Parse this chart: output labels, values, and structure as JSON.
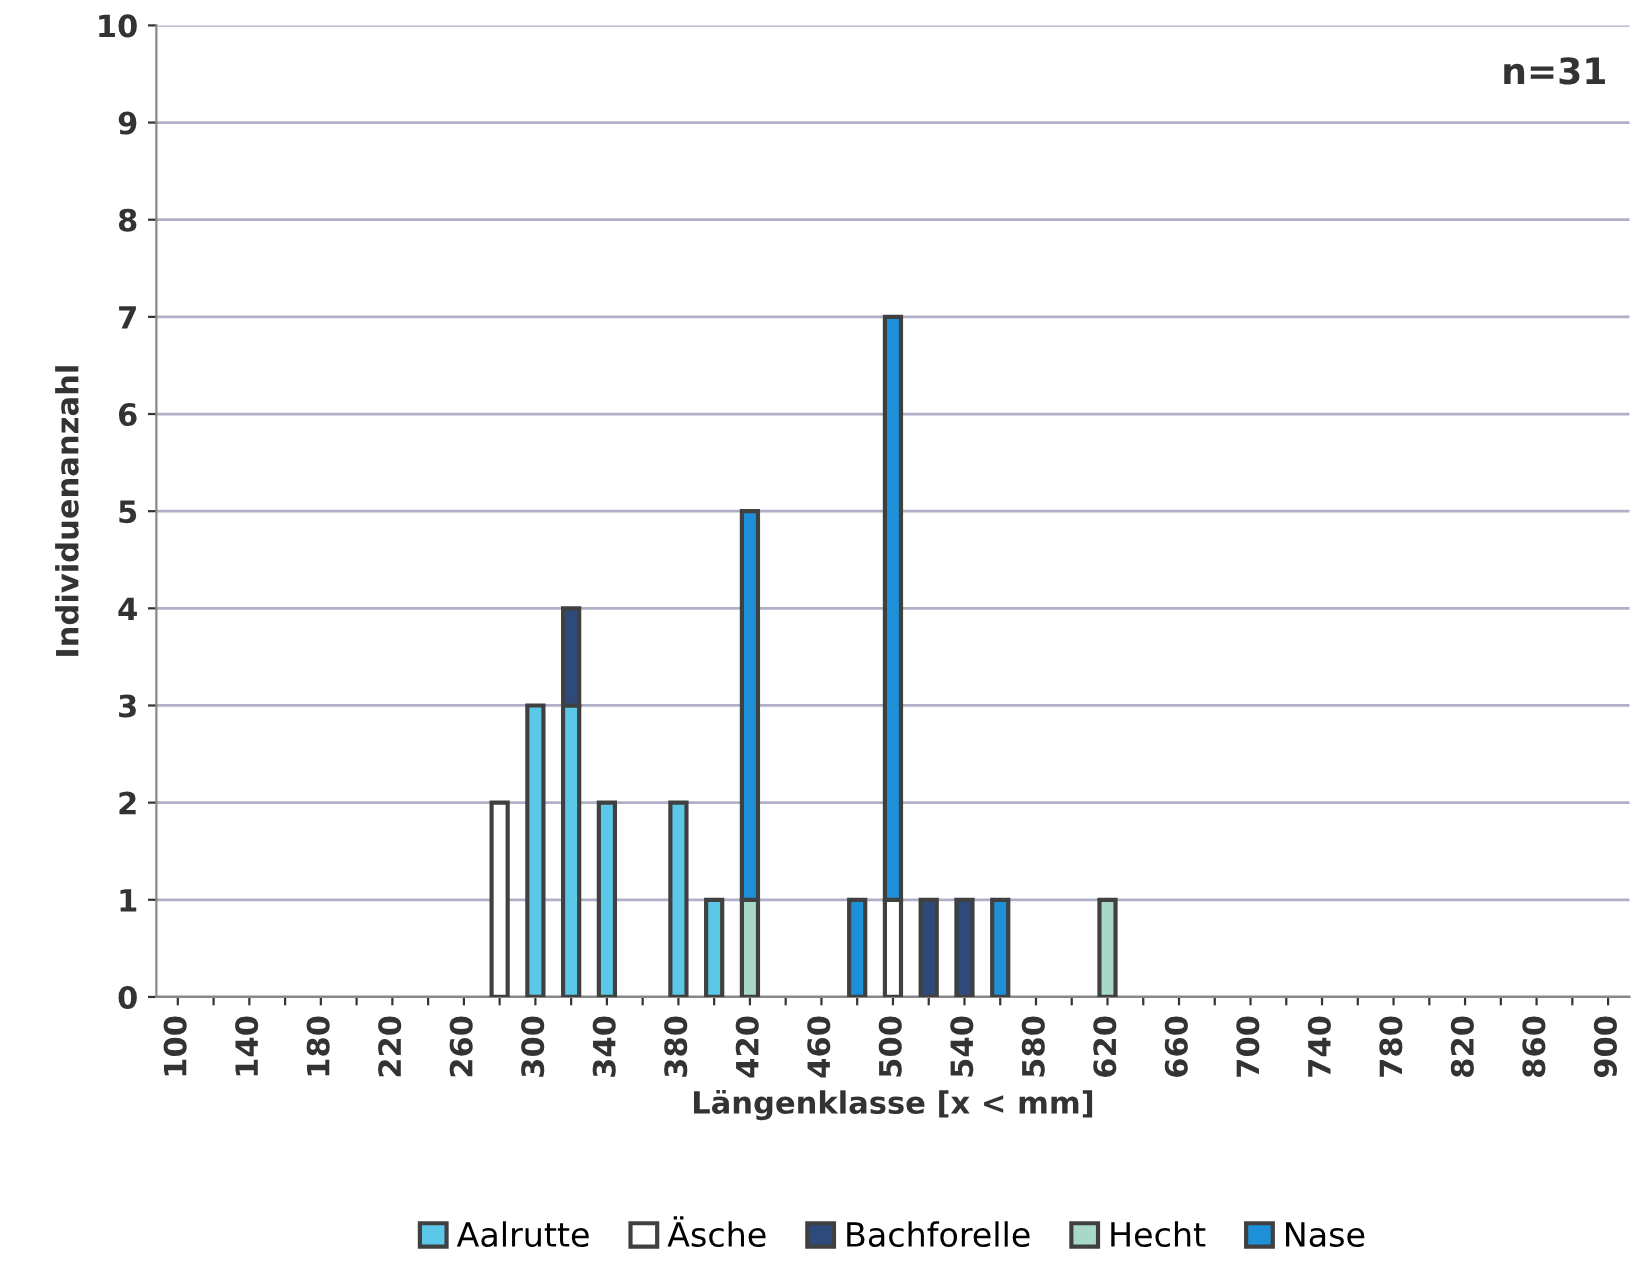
{
  "chart_data": {
    "type": "bar",
    "stacked": true,
    "xlabel": "Längenklasse [x < mm]",
    "ylabel": "Individuenanzahl",
    "categories": [
      "100",
      null,
      "140",
      null,
      "180",
      null,
      "220",
      null,
      "260",
      null,
      "300",
      null,
      "340",
      null,
      "380",
      null,
      "420",
      null,
      "460",
      null,
      "500",
      null,
      "540",
      null,
      "580",
      null,
      "620",
      null,
      "660",
      null,
      "700",
      null,
      "740",
      null,
      "780",
      null,
      "820",
      null,
      "860",
      null,
      "900"
    ],
    "series": [
      {
        "name": "Aalrutte",
        "color": "#5bc8e8",
        "values": [
          0,
          0,
          0,
          0,
          0,
          0,
          0,
          0,
          0,
          0,
          3,
          3,
          2,
          0,
          2,
          1,
          0,
          0,
          0,
          0,
          0,
          0,
          0,
          0,
          0,
          0,
          0,
          0,
          0,
          0,
          0,
          0,
          0,
          0,
          0,
          0,
          0,
          0,
          0,
          0,
          0
        ]
      },
      {
        "name": "Äsche",
        "color": "#ffffff",
        "values": [
          0,
          0,
          0,
          0,
          0,
          0,
          0,
          0,
          0,
          2,
          0,
          0,
          0,
          0,
          0,
          0,
          0,
          0,
          0,
          0,
          1,
          0,
          0,
          0,
          0,
          0,
          0,
          0,
          0,
          0,
          0,
          0,
          0,
          0,
          0,
          0,
          0,
          0,
          0,
          0,
          0
        ]
      },
      {
        "name": "Bachforelle",
        "color": "#2e4a7a",
        "values": [
          0,
          0,
          0,
          0,
          0,
          0,
          0,
          0,
          0,
          0,
          0,
          1,
          0,
          0,
          0,
          0,
          0,
          0,
          0,
          0,
          0,
          1,
          1,
          0,
          0,
          0,
          0,
          0,
          0,
          0,
          0,
          0,
          0,
          0,
          0,
          0,
          0,
          0,
          0,
          0,
          0
        ]
      },
      {
        "name": "Hecht",
        "color": "#a8d8c8",
        "values": [
          0,
          0,
          0,
          0,
          0,
          0,
          0,
          0,
          0,
          0,
          0,
          0,
          0,
          0,
          0,
          0,
          1,
          0,
          0,
          0,
          0,
          0,
          0,
          0,
          0,
          0,
          1,
          0,
          0,
          0,
          0,
          0,
          0,
          0,
          0,
          0,
          0,
          0,
          0,
          0,
          0
        ]
      },
      {
        "name": "Nase",
        "color": "#1e90d8",
        "values": [
          0,
          0,
          0,
          0,
          0,
          0,
          0,
          0,
          0,
          0,
          0,
          0,
          0,
          0,
          0,
          0,
          4,
          0,
          0,
          1,
          6,
          0,
          0,
          1,
          0,
          0,
          0,
          0,
          0,
          0,
          0,
          0,
          0,
          0,
          0,
          0,
          0,
          0,
          0,
          0,
          0
        ]
      }
    ],
    "ylim": [
      0,
      10
    ],
    "yticks": [
      0,
      1,
      2,
      3,
      4,
      5,
      6,
      7,
      8,
      9,
      10
    ],
    "grid": "y",
    "legend": "bottom",
    "annotations": [
      "n=31"
    ]
  }
}
